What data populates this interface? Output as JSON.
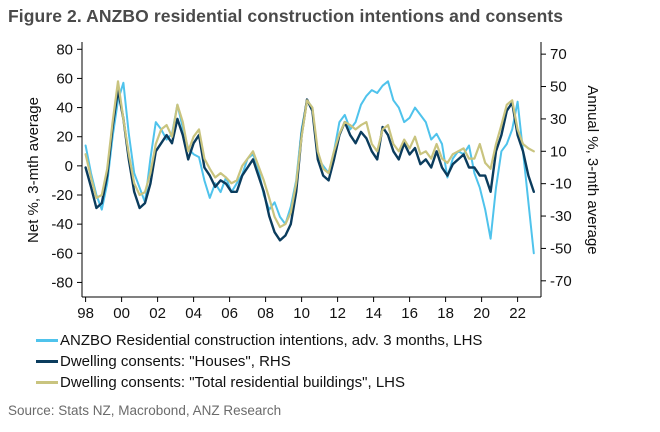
{
  "figure_title": "Figure 2.  ANZBO residential construction intentions and consents",
  "source": "Source: Stats NZ, Macrobond, ANZ Research",
  "chart_data": {
    "type": "line",
    "title": "Figure 2.  ANZBO residential construction intentions and consents",
    "x_ticks": [
      1998,
      2000,
      2002,
      2004,
      2006,
      2008,
      2010,
      2012,
      2014,
      2016,
      2018,
      2020,
      2022
    ],
    "x_tick_labels": [
      "98",
      "00",
      "02",
      "04",
      "06",
      "08",
      "10",
      "12",
      "14",
      "16",
      "18",
      "20",
      "22"
    ],
    "xlim": [
      1997.8,
      2023.3
    ],
    "left_axis": {
      "label": "Net %, 3-mth average",
      "ylim": [
        -90,
        85
      ],
      "ticks": [
        -80,
        -60,
        -40,
        -20,
        0,
        20,
        40,
        60,
        80
      ]
    },
    "right_axis": {
      "label": "Annual %, 3-mth average",
      "ylim": [
        -80,
        77.5
      ],
      "ticks": [
        -70,
        -50,
        -30,
        -10,
        10,
        30,
        50,
        70
      ]
    },
    "grid": false,
    "legend_position": "bottom",
    "series": [
      {
        "name": "ANZBO Residential construction intentions, adv. 3 months, LHS",
        "axis": "left",
        "color": "#4fc3ec",
        "x": [
          1998.0,
          1998.3,
          1998.6,
          1998.9,
          1999.2,
          1999.5,
          1999.8,
          2000.1,
          2000.4,
          2000.7,
          2001.0,
          2001.3,
          2001.6,
          2001.9,
          2002.2,
          2002.5,
          2002.8,
          2003.1,
          2003.4,
          2003.7,
          2004.0,
          2004.3,
          2004.6,
          2004.9,
          2005.2,
          2005.5,
          2005.8,
          2006.1,
          2006.4,
          2006.7,
          2007.0,
          2007.3,
          2007.6,
          2007.9,
          2008.2,
          2008.5,
          2008.8,
          2009.1,
          2009.4,
          2009.7,
          2010.0,
          2010.3,
          2010.6,
          2010.9,
          2011.2,
          2011.5,
          2011.8,
          2012.1,
          2012.4,
          2012.7,
          2013.0,
          2013.3,
          2013.6,
          2013.9,
          2014.2,
          2014.5,
          2014.8,
          2015.1,
          2015.4,
          2015.7,
          2016.0,
          2016.3,
          2016.6,
          2016.9,
          2017.2,
          2017.5,
          2017.8,
          2018.1,
          2018.4,
          2018.7,
          2019.0,
          2019.3,
          2019.6,
          2019.9,
          2020.2,
          2020.5,
          2020.8,
          2021.1,
          2021.4,
          2021.7,
          2022.0,
          2022.3,
          2022.6,
          2022.9
        ],
        "y": [
          14,
          -5,
          -20,
          -30,
          -12,
          20,
          45,
          57,
          22,
          -5,
          -15,
          -25,
          5,
          30,
          25,
          18,
          22,
          42,
          26,
          12,
          8,
          6,
          -10,
          -22,
          -12,
          -18,
          -8,
          -18,
          -12,
          -6,
          5,
          8,
          -2,
          -20,
          -30,
          -25,
          -35,
          -40,
          -28,
          -10,
          25,
          45,
          40,
          5,
          0,
          -5,
          10,
          30,
          35,
          25,
          30,
          42,
          48,
          52,
          50,
          55,
          58,
          45,
          40,
          30,
          33,
          40,
          35,
          30,
          18,
          22,
          15,
          -8,
          5,
          10,
          8,
          14,
          -5,
          -15,
          -30,
          -50,
          -15,
          10,
          15,
          25,
          44,
          10,
          -25,
          -60
        ]
      },
      {
        "name": "Dwelling consents: \"Houses\", RHS",
        "axis": "right",
        "color": "#0b3c5d",
        "x": [
          1998.0,
          1998.3,
          1998.6,
          1998.9,
          1999.2,
          1999.5,
          1999.8,
          2000.1,
          2000.4,
          2000.7,
          2001.0,
          2001.3,
          2001.6,
          2001.9,
          2002.2,
          2002.5,
          2002.8,
          2003.1,
          2003.4,
          2003.7,
          2004.0,
          2004.3,
          2004.6,
          2004.9,
          2005.2,
          2005.5,
          2005.8,
          2006.1,
          2006.4,
          2006.7,
          2007.0,
          2007.3,
          2007.6,
          2007.9,
          2008.2,
          2008.5,
          2008.8,
          2009.1,
          2009.4,
          2009.7,
          2010.0,
          2010.3,
          2010.6,
          2010.9,
          2011.2,
          2011.5,
          2011.8,
          2012.1,
          2012.4,
          2012.7,
          2013.0,
          2013.3,
          2013.6,
          2013.9,
          2014.2,
          2014.5,
          2014.8,
          2015.1,
          2015.4,
          2015.7,
          2016.0,
          2016.3,
          2016.6,
          2016.9,
          2017.2,
          2017.5,
          2017.8,
          2018.1,
          2018.4,
          2018.7,
          2019.0,
          2019.3,
          2019.6,
          2019.9,
          2020.2,
          2020.5,
          2020.8,
          2021.1,
          2021.4,
          2021.7,
          2022.0,
          2022.3,
          2022.6,
          2022.9
        ],
        "y": [
          0,
          -12,
          -25,
          -22,
          -5,
          25,
          48,
          30,
          5,
          -15,
          -25,
          -22,
          -10,
          10,
          15,
          20,
          15,
          30,
          20,
          5,
          15,
          20,
          0,
          -5,
          -12,
          -8,
          -10,
          -15,
          -15,
          -5,
          0,
          5,
          -5,
          -15,
          -30,
          -40,
          -45,
          -42,
          -35,
          -15,
          20,
          42,
          35,
          5,
          -5,
          -8,
          5,
          20,
          28,
          20,
          15,
          22,
          18,
          10,
          5,
          25,
          20,
          10,
          5,
          15,
          8,
          12,
          2,
          5,
          0,
          10,
          0,
          -5,
          2,
          5,
          8,
          0,
          0,
          -5,
          -5,
          -15,
          10,
          20,
          35,
          40,
          20,
          10,
          -5,
          -15
        ]
      },
      {
        "name": "Dwelling consents: \"Total residential buildings\", LHS",
        "axis": "left",
        "color": "#c9c47f",
        "x": [
          1998.0,
          1998.3,
          1998.6,
          1998.9,
          1999.2,
          1999.5,
          1999.8,
          2000.1,
          2000.4,
          2000.7,
          2001.0,
          2001.3,
          2001.6,
          2001.9,
          2002.2,
          2002.5,
          2002.8,
          2003.1,
          2003.4,
          2003.7,
          2004.0,
          2004.3,
          2004.6,
          2004.9,
          2005.2,
          2005.5,
          2005.8,
          2006.1,
          2006.4,
          2006.7,
          2007.0,
          2007.3,
          2007.6,
          2007.9,
          2008.2,
          2008.5,
          2008.8,
          2009.1,
          2009.4,
          2009.7,
          2010.0,
          2010.3,
          2010.6,
          2010.9,
          2011.2,
          2011.5,
          2011.8,
          2012.1,
          2012.4,
          2012.7,
          2013.0,
          2013.3,
          2013.6,
          2013.9,
          2014.2,
          2014.5,
          2014.8,
          2015.1,
          2015.4,
          2015.7,
          2016.0,
          2016.3,
          2016.6,
          2016.9,
          2017.2,
          2017.5,
          2017.8,
          2018.1,
          2018.4,
          2018.7,
          2019.0,
          2019.3,
          2019.6,
          2019.9,
          2020.2,
          2020.5,
          2020.8,
          2021.1,
          2021.4,
          2021.7,
          2022.0,
          2022.3,
          2022.6,
          2022.9
        ],
        "y": [
          8,
          -8,
          -22,
          -20,
          -2,
          30,
          58,
          32,
          8,
          -12,
          -20,
          -18,
          -5,
          15,
          25,
          28,
          20,
          42,
          30,
          10,
          20,
          25,
          5,
          -2,
          -8,
          -5,
          -8,
          -12,
          -10,
          0,
          5,
          10,
          0,
          -10,
          -22,
          -35,
          -42,
          -40,
          -32,
          -12,
          20,
          45,
          40,
          10,
          -2,
          -5,
          10,
          22,
          30,
          28,
          25,
          28,
          30,
          15,
          10,
          25,
          28,
          15,
          10,
          18,
          12,
          20,
          8,
          10,
          5,
          15,
          5,
          2,
          8,
          10,
          12,
          5,
          5,
          15,
          2,
          -2,
          15,
          28,
          42,
          45,
          25,
          15,
          12,
          10
        ]
      }
    ]
  }
}
